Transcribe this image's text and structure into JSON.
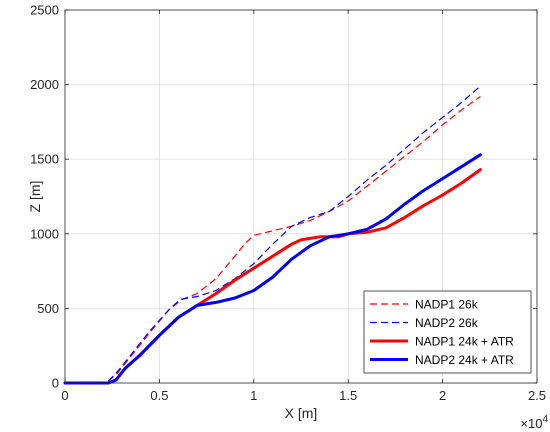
{
  "chart_data": {
    "type": "line",
    "title": "",
    "xlabel": "X [m]",
    "ylabel": "Z [m]",
    "xlim": [
      0,
      25000
    ],
    "ylim": [
      0,
      2500
    ],
    "x_ticks": [
      0,
      5000,
      10000,
      15000,
      20000,
      25000
    ],
    "x_tick_labels": [
      "0",
      "0.5",
      "1",
      "1.5",
      "2",
      "2.5"
    ],
    "x_exponent_base": "×10",
    "x_exponent_power": "4",
    "y_ticks": [
      0,
      500,
      1000,
      1500,
      2000,
      2500
    ],
    "y_tick_labels": [
      "0",
      "500",
      "1000",
      "1500",
      "2000",
      "2500"
    ],
    "grid": true,
    "legend_position": "bottom-right",
    "series": [
      {
        "name": "NADP1 26k",
        "color": "#ff0000",
        "style": "dashed",
        "width": 1.2,
        "points": [
          [
            0,
            0
          ],
          [
            2200,
            0
          ],
          [
            2800,
            70
          ],
          [
            3500,
            180
          ],
          [
            4500,
            340
          ],
          [
            5500,
            490
          ],
          [
            6200,
            560
          ],
          [
            7000,
            600
          ],
          [
            8000,
            700
          ],
          [
            9000,
            850
          ],
          [
            9500,
            930
          ],
          [
            10000,
            990
          ],
          [
            11000,
            1020
          ],
          [
            12000,
            1050
          ],
          [
            13000,
            1090
          ],
          [
            14000,
            1150
          ],
          [
            15000,
            1220
          ],
          [
            16000,
            1320
          ],
          [
            17000,
            1420
          ],
          [
            18000,
            1520
          ],
          [
            19000,
            1620
          ],
          [
            20000,
            1730
          ],
          [
            21000,
            1830
          ],
          [
            22000,
            1920
          ]
        ]
      },
      {
        "name": "NADP2 26k",
        "color": "#0000ff",
        "style": "dashed",
        "width": 1.2,
        "points": [
          [
            0,
            0
          ],
          [
            2200,
            0
          ],
          [
            2800,
            80
          ],
          [
            3500,
            190
          ],
          [
            4500,
            350
          ],
          [
            5500,
            490
          ],
          [
            6100,
            560
          ],
          [
            7000,
            580
          ],
          [
            8000,
            620
          ],
          [
            9000,
            700
          ],
          [
            10000,
            800
          ],
          [
            11000,
            930
          ],
          [
            12000,
            1050
          ],
          [
            13000,
            1110
          ],
          [
            14000,
            1150
          ],
          [
            15000,
            1250
          ],
          [
            16000,
            1360
          ],
          [
            17000,
            1460
          ],
          [
            18000,
            1570
          ],
          [
            19000,
            1680
          ],
          [
            20000,
            1780
          ],
          [
            21000,
            1880
          ],
          [
            22000,
            1990
          ]
        ]
      },
      {
        "name": "NADP1 24k + ATR",
        "color": "#ff0000",
        "style": "solid",
        "width": 3,
        "points": [
          [
            0,
            0
          ],
          [
            2300,
            0
          ],
          [
            2700,
            20
          ],
          [
            3200,
            100
          ],
          [
            4000,
            190
          ],
          [
            5000,
            320
          ],
          [
            6000,
            440
          ],
          [
            7000,
            520
          ],
          [
            8000,
            600
          ],
          [
            9000,
            690
          ],
          [
            10000,
            770
          ],
          [
            11000,
            850
          ],
          [
            12000,
            930
          ],
          [
            12500,
            960
          ],
          [
            13500,
            980
          ],
          [
            14500,
            980
          ],
          [
            15000,
            1000
          ],
          [
            16000,
            1010
          ],
          [
            17000,
            1040
          ],
          [
            18000,
            1110
          ],
          [
            19000,
            1190
          ],
          [
            20000,
            1260
          ],
          [
            21000,
            1340
          ],
          [
            22000,
            1430
          ]
        ]
      },
      {
        "name": "NADP2 24k + ATR",
        "color": "#0000ff",
        "style": "solid",
        "width": 3,
        "points": [
          [
            0,
            0
          ],
          [
            2300,
            0
          ],
          [
            2700,
            20
          ],
          [
            3200,
            100
          ],
          [
            4000,
            190
          ],
          [
            5000,
            320
          ],
          [
            6000,
            440
          ],
          [
            7000,
            520
          ],
          [
            8000,
            540
          ],
          [
            9000,
            570
          ],
          [
            10000,
            620
          ],
          [
            11000,
            710
          ],
          [
            12000,
            830
          ],
          [
            13000,
            920
          ],
          [
            14000,
            980
          ],
          [
            15000,
            1000
          ],
          [
            16000,
            1030
          ],
          [
            17000,
            1100
          ],
          [
            18000,
            1200
          ],
          [
            19000,
            1290
          ],
          [
            20000,
            1370
          ],
          [
            21000,
            1450
          ],
          [
            22000,
            1530
          ]
        ]
      }
    ]
  }
}
